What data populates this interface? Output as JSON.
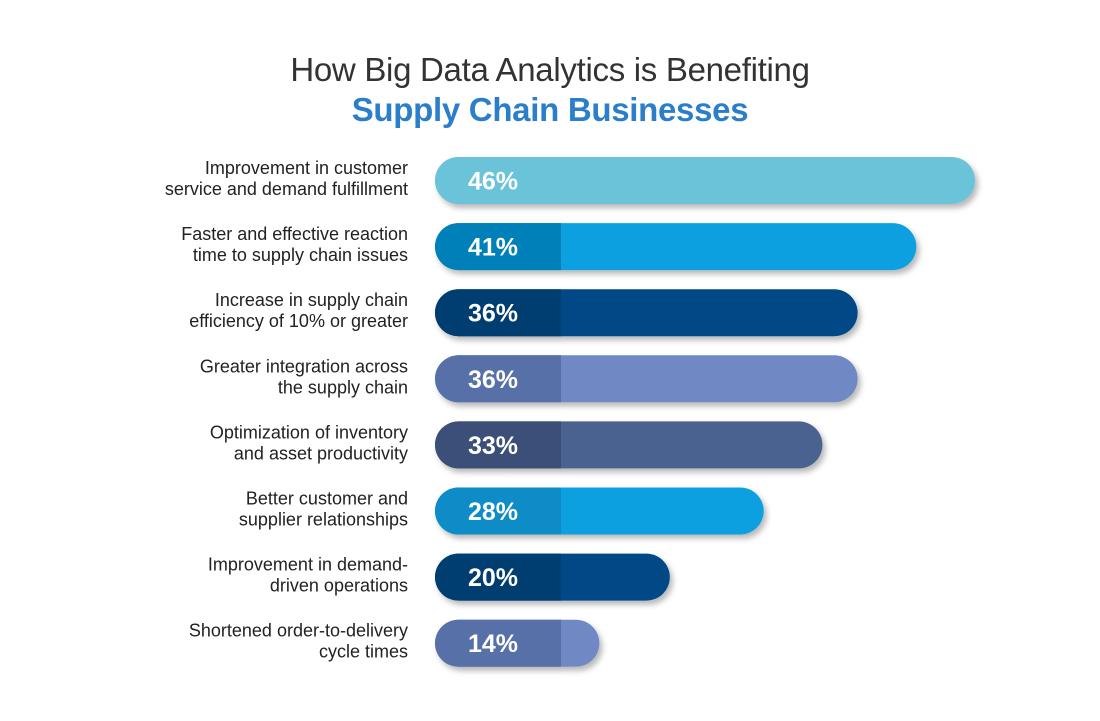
{
  "colors": {
    "title_primary": "#333333",
    "title_accent": "#2b7ec9",
    "label_text": "#222222",
    "value_text": "#ffffff"
  },
  "chart_data": {
    "type": "bar",
    "orientation": "horizontal",
    "title_line1": "How Big Data Analytics is Benefiting",
    "title_line2": "Supply Chain Businesses",
    "value_format": "percent",
    "categories": [
      [
        "Improvement in customer",
        "service and demand fulfillment"
      ],
      [
        "Faster and effective reaction",
        "time to supply chain issues"
      ],
      [
        "Increase in supply chain",
        "efficiency of 10% or greater"
      ],
      [
        "Greater integration across",
        "the supply chain"
      ],
      [
        "Optimization of inventory",
        "and asset productivity"
      ],
      [
        "Better customer and",
        "supplier relationships"
      ],
      [
        "Improvement in demand-",
        "driven operations"
      ],
      [
        "Shortened order-to-delivery",
        "cycle times"
      ]
    ],
    "values": [
      46,
      41,
      36,
      36,
      33,
      28,
      20,
      14
    ],
    "value_labels": [
      "46%",
      "41%",
      "36%",
      "36%",
      "33%",
      "28%",
      "20%",
      "14%"
    ],
    "bar_colors": [
      "#6bc3d8",
      "#0aa0e0",
      "#034a86",
      "#7089c4",
      "#4a6290",
      "#10a0e0",
      "#034a86",
      "#7089c4"
    ],
    "label_block_colors": [
      "#6bc3d8",
      "#0080b8",
      "#023d70",
      "#5870a8",
      "#3b5078",
      "#0a8cc8",
      "#023d70",
      "#5870a8"
    ]
  }
}
